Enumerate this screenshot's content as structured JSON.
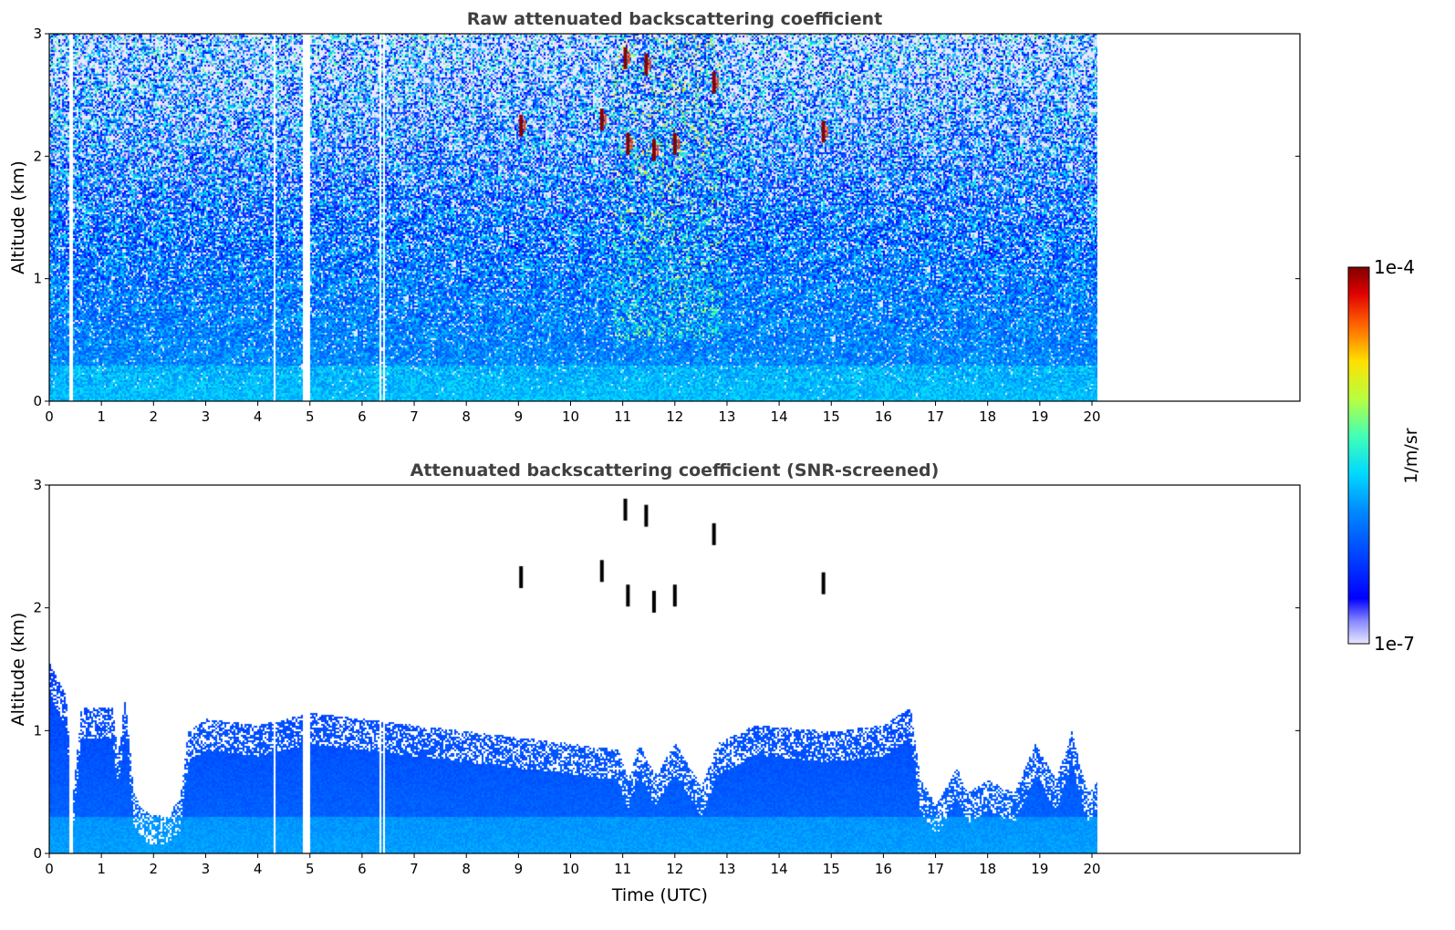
{
  "chart_data": [
    {
      "type": "heatmap",
      "title": "Raw attenuated backscattering coefficient",
      "ylabel": "Altitude (km)",
      "xlabel": "",
      "xlim": [
        0,
        24
      ],
      "ylim": [
        0,
        3
      ],
      "xticks": [
        "0",
        "1",
        "2",
        "3",
        "4",
        "5",
        "6",
        "7",
        "8",
        "9",
        "10",
        "11",
        "12",
        "13",
        "14",
        "15",
        "16",
        "17",
        "18",
        "19",
        "20"
      ],
      "yticks": [
        "0",
        "1",
        "2",
        "3"
      ],
      "data_extent_x": [
        0,
        20.1
      ],
      "gaps_x": [
        0.4,
        4.3,
        4.88,
        4.95,
        6.33,
        6.4
      ],
      "cloud_cores": [
        {
          "x": 9.05,
          "y": 2.25
        },
        {
          "x": 11.1,
          "y": 2.1
        },
        {
          "x": 11.6,
          "y": 2.05
        },
        {
          "x": 12.0,
          "y": 2.1
        },
        {
          "x": 11.05,
          "y": 2.8
        },
        {
          "x": 11.45,
          "y": 2.75
        },
        {
          "x": 12.75,
          "y": 2.6
        },
        {
          "x": 14.85,
          "y": 2.2
        },
        {
          "x": 10.6,
          "y": 2.3
        }
      ]
    },
    {
      "type": "heatmap",
      "title": "Attenuated backscattering coefficient (SNR-screened)",
      "ylabel": "Altitude (km)",
      "xlabel": "Time (UTC)",
      "xlim": [
        0,
        24
      ],
      "ylim": [
        0,
        3
      ],
      "xticks": [
        "0",
        "1",
        "2",
        "3",
        "4",
        "5",
        "6",
        "7",
        "8",
        "9",
        "10",
        "11",
        "12",
        "13",
        "14",
        "15",
        "16",
        "17",
        "18",
        "19",
        "20"
      ],
      "yticks": [
        "0",
        "1",
        "2",
        "3"
      ],
      "data_extent_x": [
        0,
        20.1
      ],
      "gaps_x": [
        0.4,
        4.3,
        4.88,
        4.95,
        6.33,
        6.4
      ],
      "layer_top_profile": [
        [
          0.0,
          1.55
        ],
        [
          0.3,
          1.3
        ],
        [
          0.45,
          0.5
        ],
        [
          0.6,
          1.2
        ],
        [
          1.2,
          1.2
        ],
        [
          1.3,
          0.8
        ],
        [
          1.45,
          1.3
        ],
        [
          1.6,
          0.5
        ],
        [
          1.8,
          0.35
        ],
        [
          2.2,
          0.3
        ],
        [
          2.5,
          0.45
        ],
        [
          2.65,
          1.0
        ],
        [
          3.0,
          1.1
        ],
        [
          4.0,
          1.05
        ],
        [
          5.0,
          1.15
        ],
        [
          6.0,
          1.1
        ],
        [
          7.0,
          1.05
        ],
        [
          8.0,
          1.0
        ],
        [
          9.0,
          0.95
        ],
        [
          10.0,
          0.9
        ],
        [
          10.9,
          0.85
        ],
        [
          11.1,
          0.6
        ],
        [
          11.3,
          0.9
        ],
        [
          11.6,
          0.65
        ],
        [
          12.0,
          0.9
        ],
        [
          12.5,
          0.55
        ],
        [
          12.8,
          0.9
        ],
        [
          13.5,
          1.05
        ],
        [
          15.0,
          1.0
        ],
        [
          16.0,
          1.05
        ],
        [
          16.5,
          1.2
        ],
        [
          16.7,
          0.6
        ],
        [
          17.0,
          0.4
        ],
        [
          17.4,
          0.7
        ],
        [
          17.6,
          0.5
        ],
        [
          18.0,
          0.6
        ],
        [
          18.5,
          0.5
        ],
        [
          18.9,
          0.9
        ],
        [
          19.3,
          0.6
        ],
        [
          19.6,
          1.0
        ],
        [
          19.9,
          0.5
        ],
        [
          20.1,
          0.6
        ]
      ],
      "cloud_cores": [
        {
          "x": 9.05,
          "y": 2.25
        },
        {
          "x": 11.1,
          "y": 2.1
        },
        {
          "x": 11.6,
          "y": 2.05
        },
        {
          "x": 12.0,
          "y": 2.1
        },
        {
          "x": 11.05,
          "y": 2.8
        },
        {
          "x": 11.45,
          "y": 2.75
        },
        {
          "x": 12.75,
          "y": 2.6
        },
        {
          "x": 10.6,
          "y": 2.3
        },
        {
          "x": 14.85,
          "y": 2.2
        }
      ]
    }
  ],
  "colorbar": {
    "label": "1/m/sr",
    "max_label": "1e-4",
    "min_label": "1e-7",
    "scale": "log",
    "colormap": "jet",
    "range": [
      1e-07,
      0.0001
    ]
  },
  "colors": {
    "background": "#ffffff",
    "title": "#404040",
    "axis": "#000000"
  }
}
